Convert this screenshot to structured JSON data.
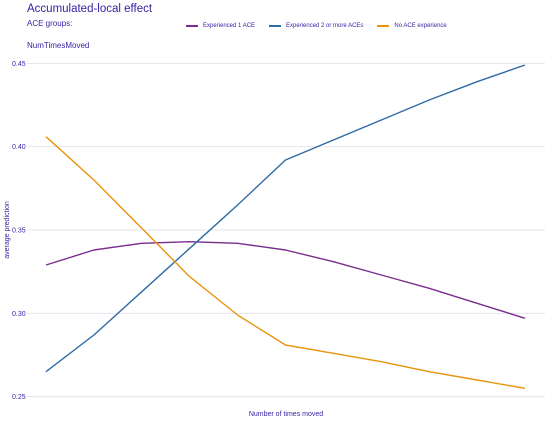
{
  "header": {
    "title": "Accumulated-local effect",
    "subtitle": "ACE groups:",
    "panel_title": "NumTimesMoved"
  },
  "chart_data": {
    "type": "line",
    "title": "Accumulated-local effect",
    "subtitle": "ACE groups:",
    "panel_title": "NumTimesMoved",
    "xlabel": "Number of times moved",
    "ylabel": "average prediction",
    "ylim": [
      0.245,
      0.455
    ],
    "xlim": [
      0,
      10
    ],
    "y_ticks": [
      "0.25",
      "0.30",
      "0.35",
      "0.40",
      "0.45"
    ],
    "y_tick_values": [
      0.25,
      0.3,
      0.35,
      0.4,
      0.45
    ],
    "grid": true,
    "legend_position": "top",
    "x": [
      0,
      1,
      2,
      3,
      4,
      5,
      6,
      7,
      8,
      9,
      10
    ],
    "series": [
      {
        "name": "Experienced 1 ACE",
        "color": "#7b2d8e",
        "values": [
          0.329,
          0.338,
          0.342,
          0.343,
          0.342,
          0.338,
          0.331,
          0.323,
          0.315,
          0.306,
          0.297
        ]
      },
      {
        "name": "Experienced 2 or more ACEs",
        "color": "#2e6aa5",
        "values": [
          0.265,
          0.287,
          0.313,
          0.339,
          0.365,
          0.392,
          0.404,
          0.416,
          0.428,
          0.439,
          0.449
        ]
      },
      {
        "name": "No ACE experience",
        "color": "#e8940f",
        "values": [
          0.406,
          0.38,
          0.351,
          0.322,
          0.299,
          0.281,
          0.276,
          0.271,
          0.265,
          0.26,
          0.255
        ]
      }
    ]
  }
}
